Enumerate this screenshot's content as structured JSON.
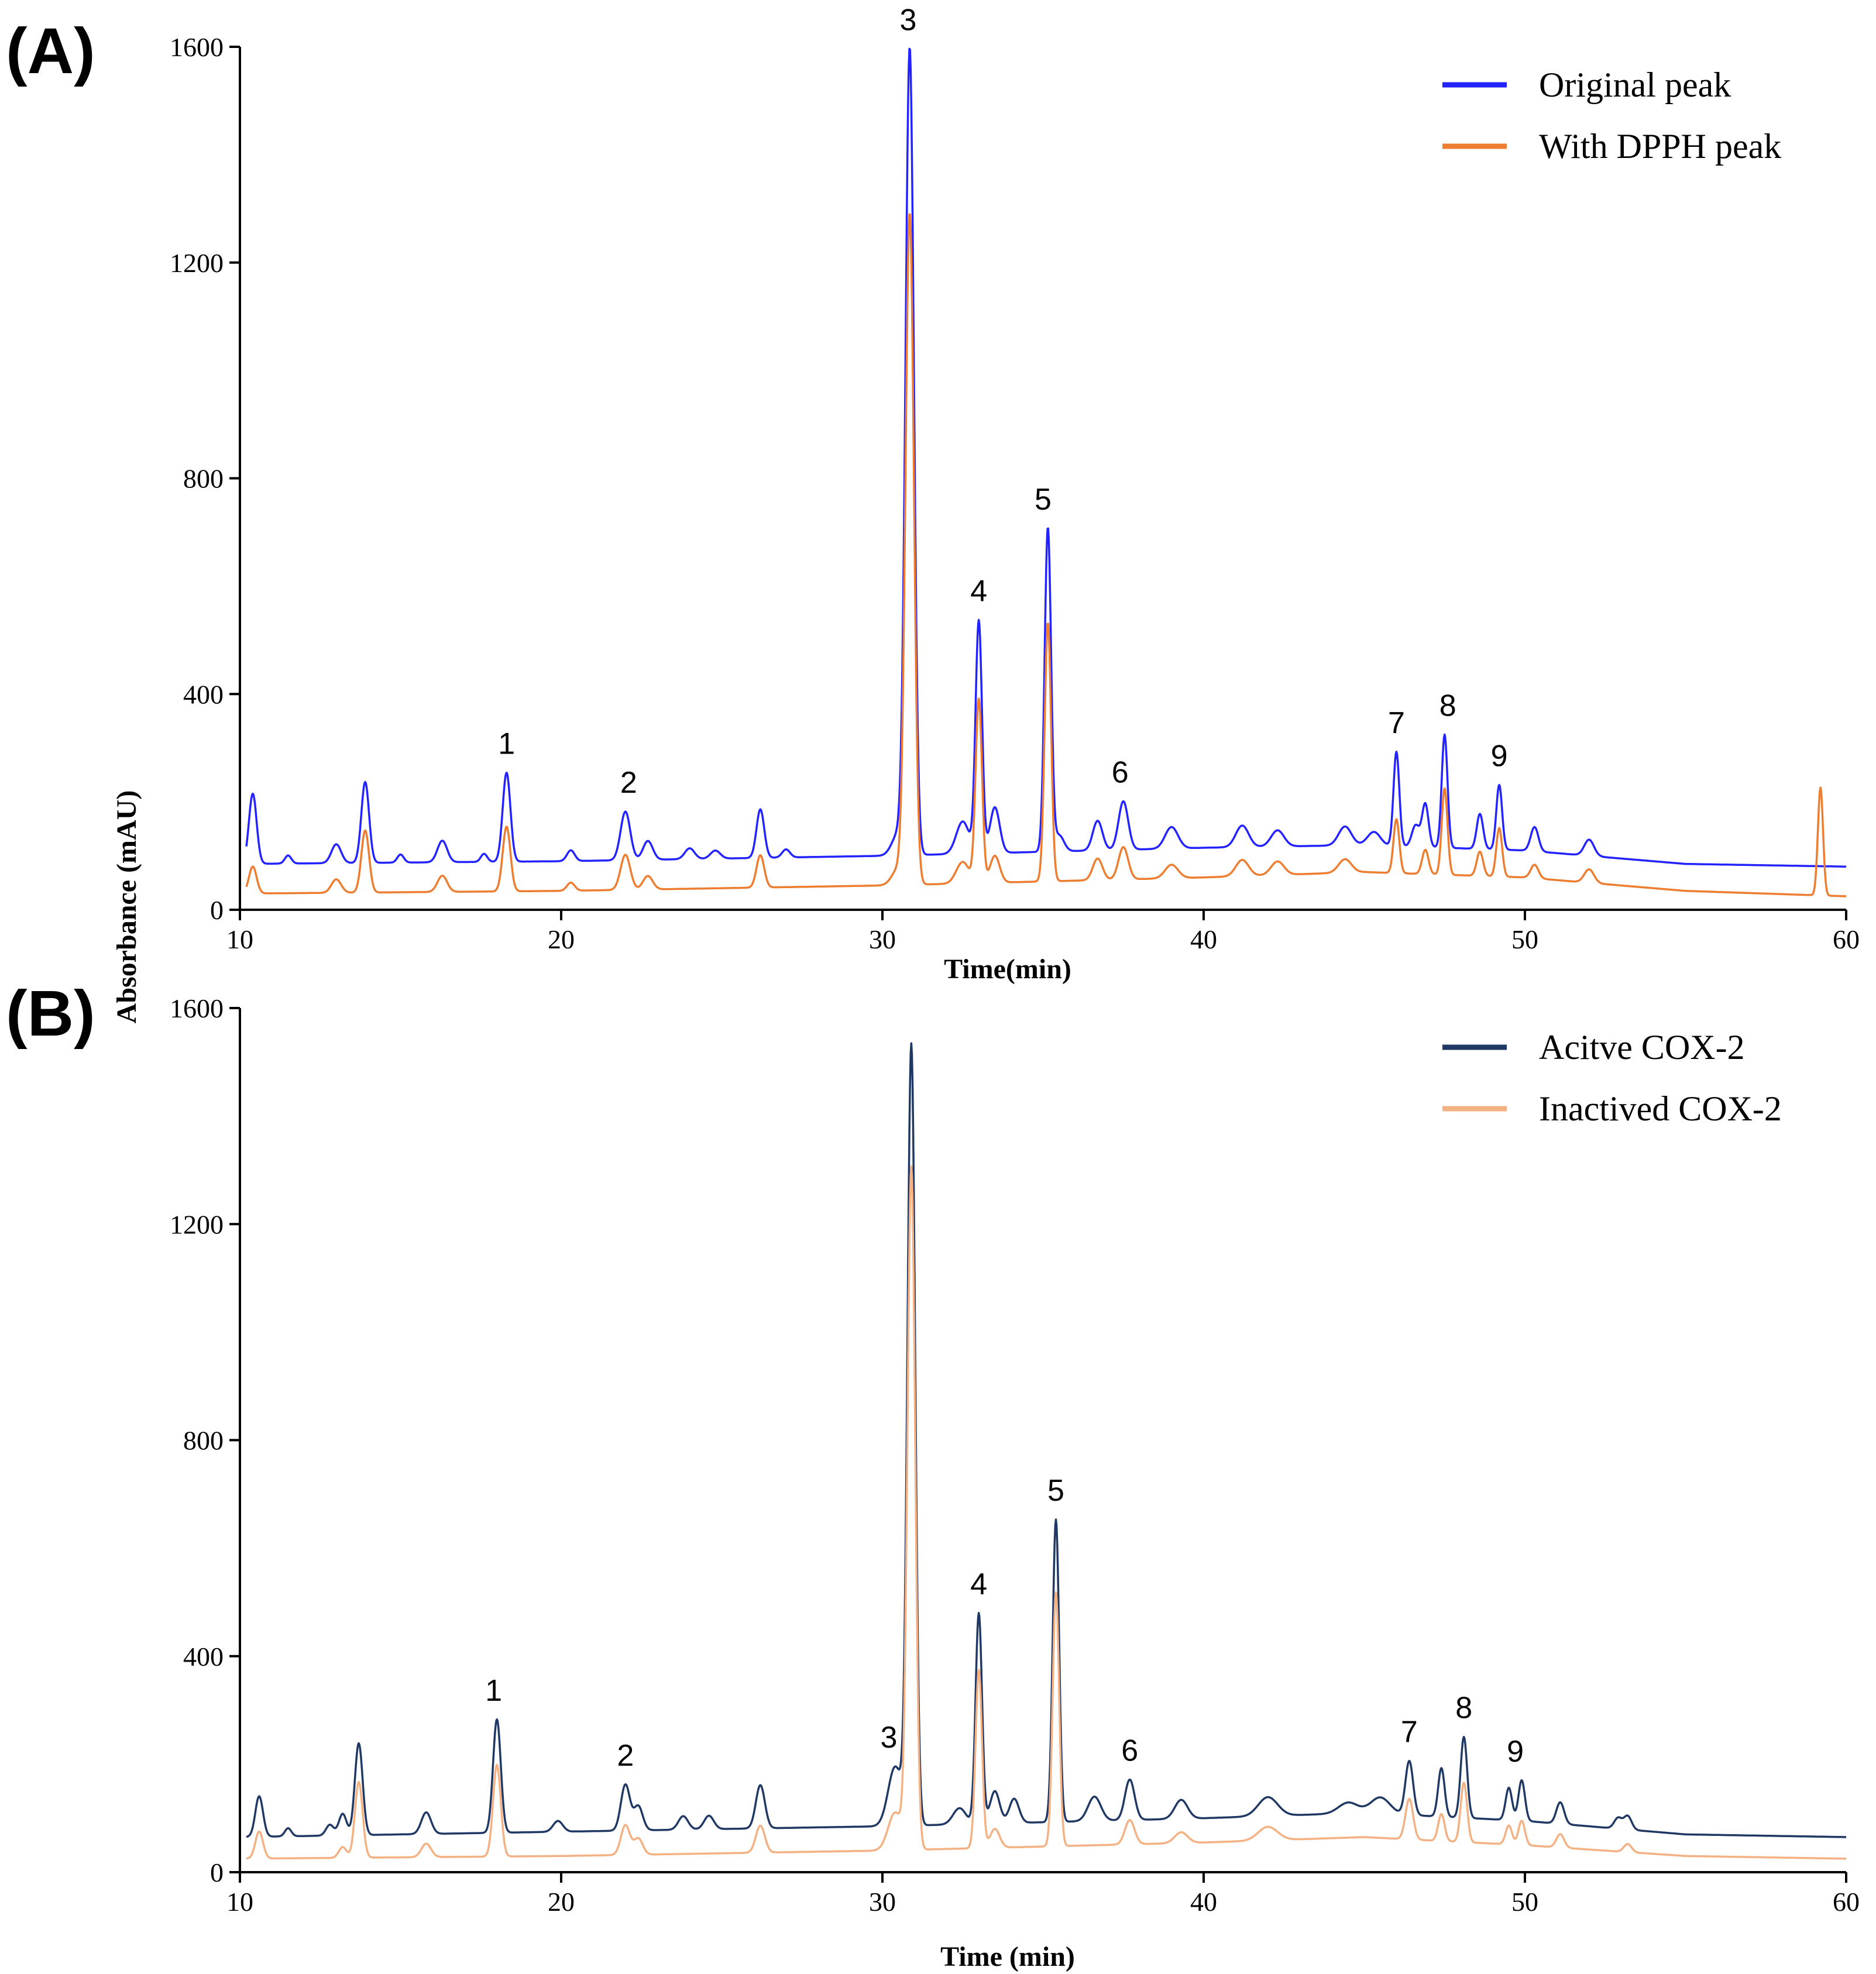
{
  "shared": {
    "ylabel": "Absorbance (mAU)"
  },
  "chart_data": [
    {
      "type": "line",
      "panel_label": "(A)",
      "title": "",
      "xlabel": "Time(min)",
      "ylabel": "Absorbance (mAU)",
      "xlim": [
        10,
        60
      ],
      "ylim": [
        0,
        1600
      ],
      "xticks": [
        10,
        20,
        30,
        40,
        50,
        60
      ],
      "yticks": [
        0,
        400,
        800,
        1200,
        1600
      ],
      "grid": false,
      "legend_position": "top-right",
      "series": [
        {
          "name": "Original peak",
          "color": "#2323ff",
          "baseline": [
            [
              10,
              85
            ],
            [
              20,
              90
            ],
            [
              30,
              100
            ],
            [
              40,
              115
            ],
            [
              45,
              120
            ],
            [
              50,
              110
            ],
            [
              55,
              85
            ],
            [
              60,
              80
            ]
          ],
          "peaks": [
            [
              10.4,
              130,
              0.12
            ],
            [
              11.5,
              15,
              0.1
            ],
            [
              13.0,
              35,
              0.15
            ],
            [
              13.9,
              150,
              0.12
            ],
            [
              15.0,
              15,
              0.1
            ],
            [
              16.3,
              40,
              0.15
            ],
            [
              17.6,
              15,
              0.1
            ],
            [
              18.3,
              165,
              0.12
            ],
            [
              20.3,
              20,
              0.12
            ],
            [
              22.0,
              90,
              0.15
            ],
            [
              22.7,
              35,
              0.15
            ],
            [
              24.0,
              20,
              0.15
            ],
            [
              24.8,
              15,
              0.15
            ],
            [
              26.2,
              90,
              0.12
            ],
            [
              27.0,
              15,
              0.12
            ],
            [
              30.5,
              40,
              0.2
            ],
            [
              30.85,
              1490,
              0.13
            ],
            [
              32.5,
              60,
              0.2
            ],
            [
              33.0,
              430,
              0.1
            ],
            [
              33.5,
              85,
              0.15
            ],
            [
              35.15,
              600,
              0.1
            ],
            [
              35.5,
              30,
              0.15
            ],
            [
              36.7,
              55,
              0.15
            ],
            [
              37.5,
              90,
              0.15
            ],
            [
              39.0,
              40,
              0.2
            ],
            [
              41.2,
              40,
              0.2
            ],
            [
              42.3,
              30,
              0.2
            ],
            [
              44.4,
              35,
              0.2
            ],
            [
              45.3,
              25,
              0.2
            ],
            [
              46.0,
              175,
              0.09
            ],
            [
              46.6,
              40,
              0.12
            ],
            [
              46.9,
              80,
              0.1
            ],
            [
              47.5,
              210,
              0.09
            ],
            [
              48.6,
              65,
              0.1
            ],
            [
              49.2,
              120,
              0.09
            ],
            [
              50.3,
              45,
              0.12
            ],
            [
              52.0,
              30,
              0.15
            ]
          ],
          "peak_labels": [
            {
              "label": "1",
              "x": 18.3
            },
            {
              "label": "2",
              "x": 22.1
            },
            {
              "label": "3",
              "x": 30.8
            },
            {
              "label": "4",
              "x": 33.0
            },
            {
              "label": "5",
              "x": 35.0
            },
            {
              "label": "6",
              "x": 37.4
            },
            {
              "label": "7",
              "x": 46.0
            },
            {
              "label": "8",
              "x": 47.6
            },
            {
              "label": "9",
              "x": 49.2
            }
          ]
        },
        {
          "name": "With DPPH peak",
          "color": "#ed7d31",
          "baseline": [
            [
              10,
              30
            ],
            [
              20,
              35
            ],
            [
              30,
              45
            ],
            [
              40,
              60
            ],
            [
              45,
              70
            ],
            [
              50,
              60
            ],
            [
              55,
              35
            ],
            [
              60,
              25
            ]
          ],
          "peaks": [
            [
              10.4,
              50,
              0.12
            ],
            [
              13.0,
              25,
              0.15
            ],
            [
              13.9,
              115,
              0.12
            ],
            [
              16.3,
              30,
              0.15
            ],
            [
              18.3,
              120,
              0.12
            ],
            [
              20.3,
              15,
              0.12
            ],
            [
              22.0,
              65,
              0.15
            ],
            [
              22.7,
              25,
              0.15
            ],
            [
              26.2,
              60,
              0.12
            ],
            [
              30.5,
              30,
              0.2
            ],
            [
              30.85,
              1240,
              0.13
            ],
            [
              32.5,
              40,
              0.2
            ],
            [
              33.0,
              340,
              0.1
            ],
            [
              33.5,
              50,
              0.15
            ],
            [
              35.15,
              480,
              0.1
            ],
            [
              36.7,
              40,
              0.15
            ],
            [
              37.5,
              60,
              0.15
            ],
            [
              39.0,
              25,
              0.2
            ],
            [
              41.2,
              30,
              0.2
            ],
            [
              42.3,
              25,
              0.2
            ],
            [
              44.4,
              25,
              0.2
            ],
            [
              46.0,
              100,
              0.09
            ],
            [
              46.9,
              45,
              0.1
            ],
            [
              47.5,
              160,
              0.09
            ],
            [
              48.6,
              45,
              0.1
            ],
            [
              49.2,
              90,
              0.09
            ],
            [
              50.3,
              25,
              0.12
            ],
            [
              52.0,
              25,
              0.15
            ],
            [
              59.2,
              200,
              0.08
            ]
          ]
        }
      ]
    },
    {
      "type": "line",
      "panel_label": "(B)",
      "title": "",
      "xlabel": "Time (min)",
      "ylabel": "Absorbance (mAU)",
      "xlim": [
        10,
        60
      ],
      "ylim": [
        0,
        1600
      ],
      "xticks": [
        10,
        20,
        30,
        40,
        50,
        60
      ],
      "yticks": [
        0,
        400,
        800,
        1200,
        1600
      ],
      "grid": false,
      "legend_position": "top-right",
      "series": [
        {
          "name": "Acitve COX-2",
          "color": "#1f3864",
          "baseline": [
            [
              10,
              65
            ],
            [
              20,
              75
            ],
            [
              30,
              85
            ],
            [
              40,
              100
            ],
            [
              45,
              110
            ],
            [
              50,
              95
            ],
            [
              55,
              70
            ],
            [
              60,
              65
            ]
          ],
          "peaks": [
            [
              10.6,
              75,
              0.12
            ],
            [
              11.5,
              15,
              0.1
            ],
            [
              12.8,
              20,
              0.12
            ],
            [
              13.2,
              40,
              0.12
            ],
            [
              13.7,
              170,
              0.12
            ],
            [
              15.8,
              40,
              0.15
            ],
            [
              18.0,
              210,
              0.12
            ],
            [
              19.9,
              20,
              0.15
            ],
            [
              22.0,
              85,
              0.14
            ],
            [
              22.4,
              45,
              0.14
            ],
            [
              23.8,
              25,
              0.15
            ],
            [
              24.6,
              25,
              0.15
            ],
            [
              26.2,
              80,
              0.14
            ],
            [
              30.4,
              110,
              0.22
            ],
            [
              30.9,
              1440,
              0.12
            ],
            [
              32.4,
              30,
              0.2
            ],
            [
              33.0,
              390,
              0.1
            ],
            [
              33.5,
              60,
              0.15
            ],
            [
              34.1,
              45,
              0.15
            ],
            [
              35.4,
              560,
              0.1
            ],
            [
              36.6,
              45,
              0.2
            ],
            [
              37.7,
              75,
              0.15
            ],
            [
              39.3,
              35,
              0.2
            ],
            [
              42.0,
              35,
              0.3
            ],
            [
              44.5,
              20,
              0.3
            ],
            [
              45.5,
              30,
              0.3
            ],
            [
              46.4,
              100,
              0.12
            ],
            [
              47.4,
              90,
              0.1
            ],
            [
              48.1,
              150,
              0.1
            ],
            [
              49.5,
              60,
              0.1
            ],
            [
              49.9,
              75,
              0.1
            ],
            [
              51.1,
              40,
              0.12
            ],
            [
              52.9,
              20,
              0.12
            ],
            [
              53.2,
              25,
              0.12
            ]
          ],
          "peak_labels": [
            {
              "label": "1",
              "x": 17.9
            },
            {
              "label": "2",
              "x": 22.0
            },
            {
              "label": "3",
              "x": 30.2
            },
            {
              "label": "4",
              "x": 33.0
            },
            {
              "label": "5",
              "x": 35.4
            },
            {
              "label": "6",
              "x": 37.7
            },
            {
              "label": "7",
              "x": 46.4
            },
            {
              "label": "8",
              "x": 48.1
            },
            {
              "label": "9",
              "x": 49.7
            }
          ]
        },
        {
          "name": "Inactived COX-2",
          "color": "#f4b183",
          "baseline": [
            [
              10,
              25
            ],
            [
              20,
              30
            ],
            [
              30,
              40
            ],
            [
              40,
              55
            ],
            [
              45,
              65
            ],
            [
              50,
              50
            ],
            [
              55,
              30
            ],
            [
              60,
              25
            ]
          ],
          "peaks": [
            [
              10.6,
              50,
              0.12
            ],
            [
              13.2,
              20,
              0.12
            ],
            [
              13.7,
              140,
              0.12
            ],
            [
              15.8,
              25,
              0.15
            ],
            [
              18.0,
              170,
              0.12
            ],
            [
              22.0,
              55,
              0.14
            ],
            [
              22.4,
              30,
              0.14
            ],
            [
              26.2,
              50,
              0.14
            ],
            [
              30.4,
              70,
              0.22
            ],
            [
              30.9,
              1260,
              0.12
            ],
            [
              33.0,
              330,
              0.1
            ],
            [
              33.5,
              35,
              0.15
            ],
            [
              35.4,
              470,
              0.1
            ],
            [
              37.7,
              45,
              0.15
            ],
            [
              39.3,
              20,
              0.2
            ],
            [
              42.0,
              25,
              0.3
            ],
            [
              46.4,
              75,
              0.12
            ],
            [
              47.4,
              50,
              0.1
            ],
            [
              48.1,
              110,
              0.1
            ],
            [
              49.5,
              35,
              0.1
            ],
            [
              49.9,
              45,
              0.1
            ],
            [
              51.1,
              25,
              0.12
            ],
            [
              53.2,
              15,
              0.12
            ]
          ]
        }
      ]
    }
  ]
}
